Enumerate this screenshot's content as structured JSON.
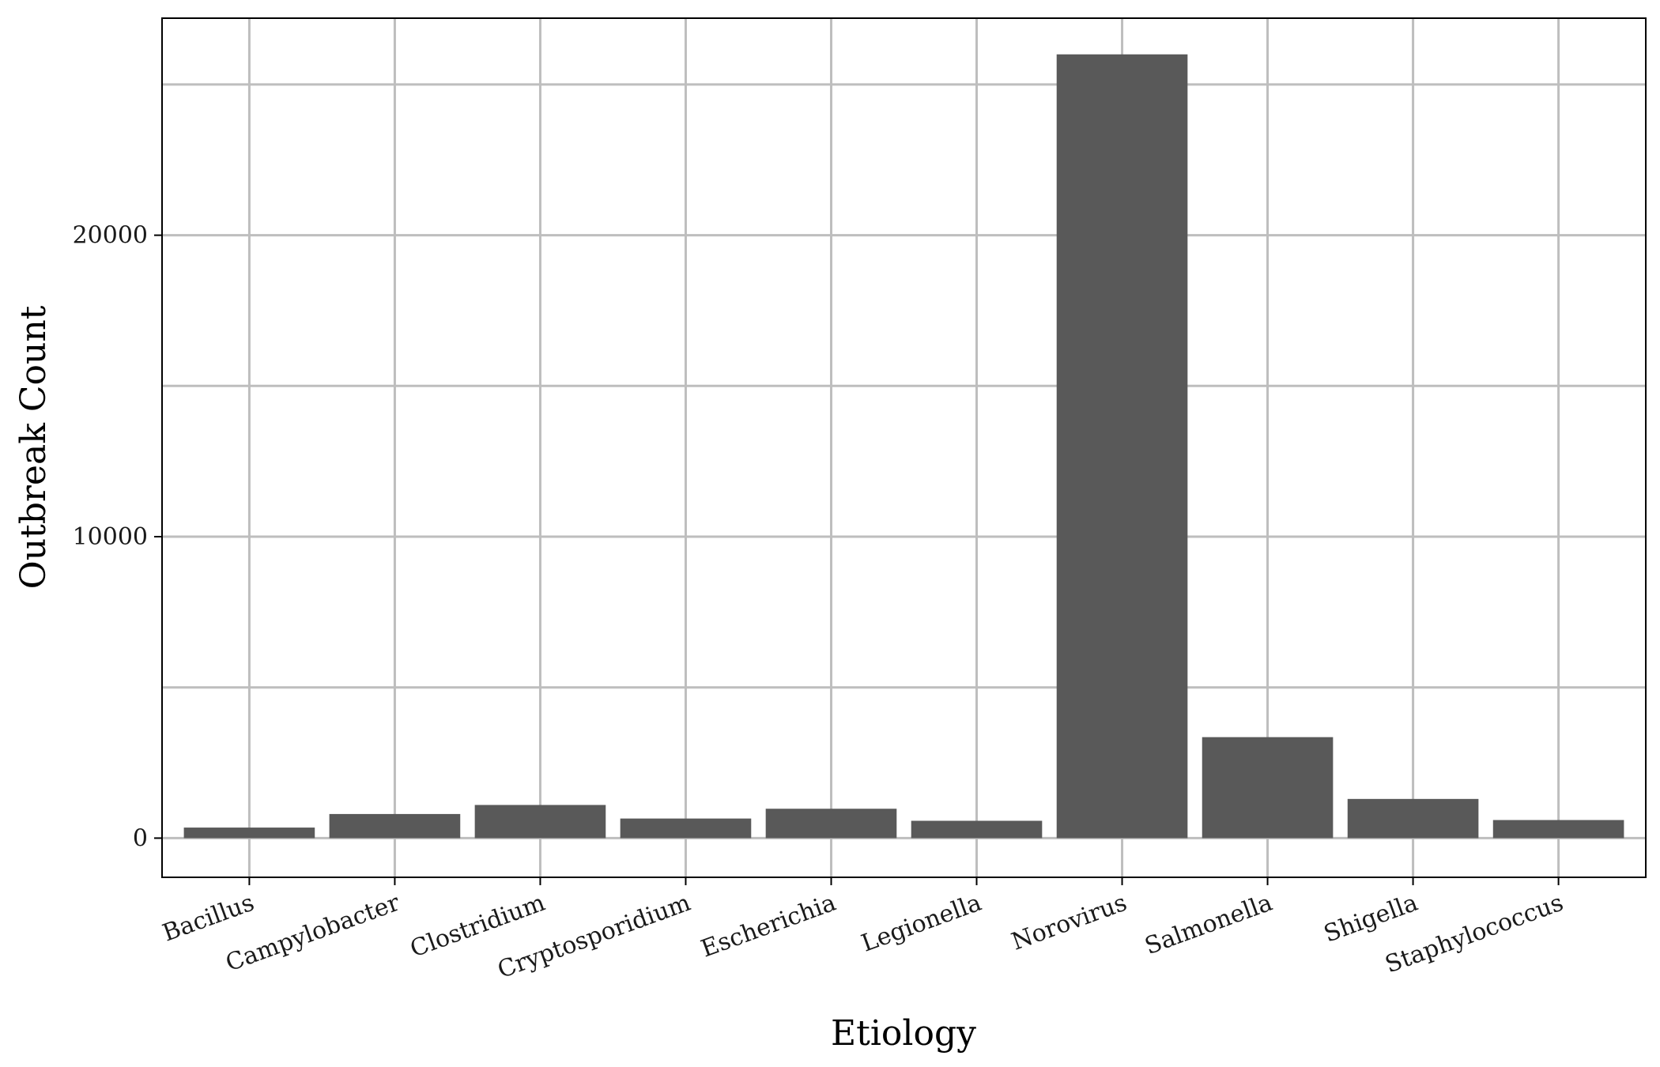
{
  "chart_data": {
    "type": "bar",
    "xlabel": "Etiology",
    "ylabel": "Outbreak Count",
    "categories": [
      "Bacillus",
      "Campylobacter",
      "Clostridium",
      "Cryptosporidium",
      "Escherichia",
      "Legionella",
      "Norovirus",
      "Salmonella",
      "Shigella",
      "Staphylococcus"
    ],
    "values": [
      350,
      800,
      1100,
      650,
      975,
      575,
      26000,
      3350,
      1300,
      600
    ],
    "ylim": [
      -1300,
      27200
    ],
    "yticks": [
      0,
      10000,
      20000
    ],
    "yticks_minor": [
      5000,
      15000,
      25000
    ],
    "grid": true,
    "x_tick_rotation": 20,
    "colors": {
      "bar": "#595959",
      "grid": "#bebebe",
      "border": "#000000",
      "background": "#ffffff"
    }
  }
}
